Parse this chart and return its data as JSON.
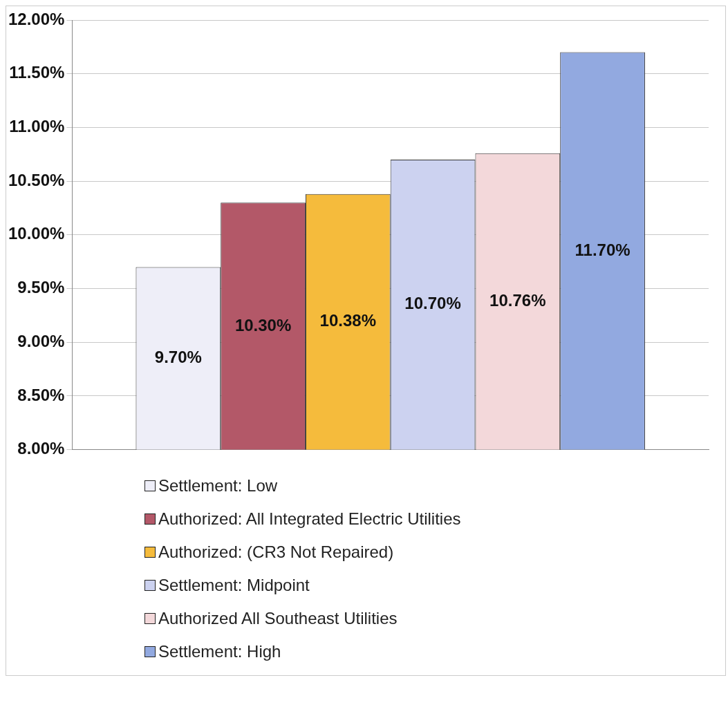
{
  "chart_data": {
    "type": "bar",
    "categories": [
      null
    ],
    "series": [
      {
        "name": "Settlement: Low",
        "color": "#eeeef8",
        "values": [
          9.7
        ],
        "value_labels": [
          "9.70%"
        ]
      },
      {
        "name": "Authorized: All Integrated Electric Utilities",
        "color": "#b35868",
        "values": [
          10.3
        ],
        "value_labels": [
          "10.30%"
        ]
      },
      {
        "name": "Authorized: (CR3 Not Repaired)",
        "color": "#f5bb3c",
        "values": [
          10.38
        ],
        "value_labels": [
          "10.38%"
        ]
      },
      {
        "name": "Settlement: Midpoint",
        "color": "#ccd2f0",
        "values": [
          10.7
        ],
        "value_labels": [
          "10.70%"
        ]
      },
      {
        "name": "Authorized All Southeast Utilities",
        "color": "#f3d8da",
        "values": [
          10.76
        ],
        "value_labels": [
          "10.76%"
        ]
      },
      {
        "name": "Settlement: High",
        "color": "#92a9e0",
        "values": [
          11.7
        ],
        "value_labels": [
          "11.70%"
        ]
      }
    ],
    "ylim": [
      8,
      12
    ],
    "yticks": [
      {
        "value": 8,
        "label": "8.00%"
      },
      {
        "value": 8.5,
        "label": "8.50%"
      },
      {
        "value": 9,
        "label": "9.00%"
      },
      {
        "value": 9.5,
        "label": "9.50%"
      },
      {
        "value": 10,
        "label": "10.00%"
      },
      {
        "value": 10.5,
        "label": "10.50%"
      },
      {
        "value": 11,
        "label": "11.00%"
      },
      {
        "value": 11.5,
        "label": "11.50%"
      },
      {
        "value": 12,
        "label": "12.00%"
      }
    ],
    "grid": "y",
    "legend": "bottom"
  }
}
